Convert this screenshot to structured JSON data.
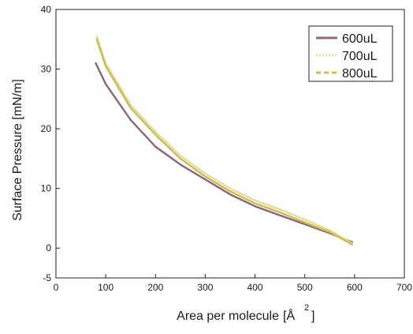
{
  "chart_data": {
    "type": "line",
    "title": "",
    "xlabel": "Area per molecule",
    "xlabel_unit_base": "[Å",
    "xlabel_unit_sup": "2",
    "xlabel_unit_close": "]",
    "ylabel": "Surface Pressure [mN/m]",
    "xlim": [
      0,
      700
    ],
    "ylim": [
      -5,
      40
    ],
    "xticks": [
      "0",
      "100",
      "200",
      "300",
      "400",
      "500",
      "600",
      "700"
    ],
    "yticks": [
      "-5",
      "0",
      "10",
      "20",
      "30",
      "40"
    ],
    "grid": false,
    "legend_position": "top-right",
    "series": [
      {
        "name": "600uL",
        "color": "#8e6a78",
        "x": [
          80,
          100,
          150,
          200,
          250,
          300,
          350,
          400,
          450,
          500,
          550,
          595
        ],
        "y": [
          31,
          27.5,
          21.5,
          17,
          14,
          11.5,
          9,
          7,
          5.5,
          4,
          2.5,
          1
        ]
      },
      {
        "name": "700uL",
        "color": "#e2dba6",
        "x": [
          82,
          100,
          150,
          200,
          250,
          300,
          350,
          400,
          450,
          500,
          550,
          595
        ],
        "y": [
          35.5,
          31,
          24,
          19.5,
          15.5,
          12.5,
          10,
          8,
          6.5,
          4.8,
          3,
          0.8
        ]
      },
      {
        "name": "800uL",
        "color": "#c8c050",
        "x": [
          82,
          100,
          150,
          200,
          250,
          300,
          350,
          400,
          450,
          500,
          550,
          595
        ],
        "y": [
          35,
          30.5,
          23.5,
          19,
          15,
          12,
          9.5,
          7.5,
          6,
          4.3,
          2.7,
          0.6
        ]
      }
    ]
  }
}
